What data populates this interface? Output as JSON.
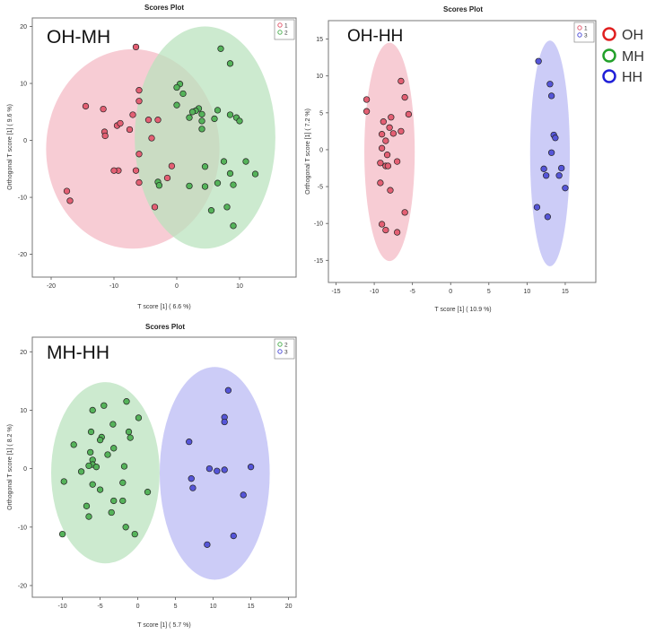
{
  "legend": {
    "items": [
      {
        "label": "OH",
        "color": "#e02020"
      },
      {
        "label": "MH",
        "color": "#22a02a"
      },
      {
        "label": "HH",
        "color": "#2020d8"
      }
    ]
  },
  "chart_data": [
    {
      "type": "scatter",
      "title": "Scores Plot",
      "panel_label": "OH-MH",
      "xlabel": "T score [1] ( 6.6 %)",
      "ylabel": "Orthogonal T score [1] ( 9.6 %)",
      "xlim": [
        -23,
        19
      ],
      "ylim": [
        -24,
        21.5
      ],
      "xticks": [
        "-20",
        "-10",
        "0",
        "10"
      ],
      "xtick_values": [
        -20,
        -10,
        0,
        10
      ],
      "yticks": [
        "-20",
        "-10",
        "0",
        "10",
        "20"
      ],
      "ytick_values": [
        -20,
        -10,
        0,
        10,
        20
      ],
      "grid": false,
      "legend_position": "top-right",
      "series": [
        {
          "name": "1",
          "color": "#e35f73",
          "fill": "#f4b9c3",
          "ellipse": {
            "cx": -7,
            "cy": -1.5,
            "rx": 13.8,
            "ry": 17.5
          },
          "points": [
            [
              -6.5,
              16.4
            ],
            [
              -6,
              8.8
            ],
            [
              -6,
              6.9
            ],
            [
              -14.5,
              6
            ],
            [
              -11.7,
              5.5
            ],
            [
              -7,
              4.5
            ],
            [
              -9.5,
              2.6
            ],
            [
              -9,
              3
            ],
            [
              -11.5,
              1.5
            ],
            [
              -11.4,
              0.8
            ],
            [
              -7.5,
              1.9
            ],
            [
              -4.5,
              3.6
            ],
            [
              -3,
              3.6
            ],
            [
              -4,
              0.4
            ],
            [
              -6,
              -2.4
            ],
            [
              -9.3,
              -5.3
            ],
            [
              -10,
              -5.3
            ],
            [
              -6.5,
              -5.3
            ],
            [
              -0.8,
              -4.5
            ],
            [
              -1.5,
              -6.6
            ],
            [
              -6,
              -7.4
            ],
            [
              -17.5,
              -8.9
            ],
            [
              -17,
              -10.6
            ],
            [
              -3.5,
              -11.7
            ]
          ]
        },
        {
          "name": "2",
          "color": "#55b35a",
          "fill": "#b8e2bc",
          "ellipse": {
            "cx": 4.5,
            "cy": 0.5,
            "rx": 11.2,
            "ry": 19.5
          },
          "points": [
            [
              7,
              16.1
            ],
            [
              8.5,
              13.5
            ],
            [
              0.5,
              9.9
            ],
            [
              0,
              9.3
            ],
            [
              1,
              8.2
            ],
            [
              0,
              6.2
            ],
            [
              3.5,
              5.6
            ],
            [
              6.5,
              5.3
            ],
            [
              3,
              5.2
            ],
            [
              2.5,
              5
            ],
            [
              4,
              4.6
            ],
            [
              8.5,
              4.5
            ],
            [
              9.5,
              4
            ],
            [
              2,
              4
            ],
            [
              6,
              3.8
            ],
            [
              4,
              3.4
            ],
            [
              10,
              3.4
            ],
            [
              4,
              2
            ],
            [
              11,
              -3.7
            ],
            [
              7.5,
              -3.7
            ],
            [
              4.5,
              -4.6
            ],
            [
              8.5,
              -5.8
            ],
            [
              12.5,
              -5.9
            ],
            [
              -3,
              -7.3
            ],
            [
              -2.8,
              -7.9
            ],
            [
              2,
              -8
            ],
            [
              4.5,
              -8.1
            ],
            [
              6.5,
              -7.5
            ],
            [
              9,
              -7.8
            ],
            [
              8,
              -11.7
            ],
            [
              5.5,
              -12.3
            ],
            [
              9,
              -15
            ]
          ]
        }
      ]
    },
    {
      "type": "scatter",
      "title": "Scores Plot",
      "panel_label": "OH-HH",
      "xlabel": "T score [1] ( 10.9 %)",
      "ylabel": "Orthogonal T score [1] ( 7.2 %)",
      "xlim": [
        -16,
        19
      ],
      "ylim": [
        -18,
        17.5
      ],
      "xticks": [
        "-15",
        "-10",
        "-5",
        "0",
        "5",
        "10",
        "15"
      ],
      "xtick_values": [
        -15,
        -10,
        -5,
        0,
        5,
        10,
        15
      ],
      "yticks": [
        "-15",
        "-10",
        "-5",
        "0",
        "5",
        "10",
        "15"
      ],
      "ytick_values": [
        -15,
        -10,
        -5,
        0,
        5,
        10,
        15
      ],
      "grid": false,
      "legend_position": "top-right",
      "series": [
        {
          "name": "1",
          "color": "#e35f73",
          "fill": "#f4b9c3",
          "ellipse": {
            "cx": -8,
            "cy": -0.3,
            "rx": 3.3,
            "ry": 14.8
          },
          "points": [
            [
              -6.5,
              9.3
            ],
            [
              -6,
              7.1
            ],
            [
              -11,
              6.8
            ],
            [
              -11,
              5.2
            ],
            [
              -5.5,
              4.8
            ],
            [
              -7.8,
              4.4
            ],
            [
              -8.8,
              3.8
            ],
            [
              -8,
              3
            ],
            [
              -7.5,
              2.2
            ],
            [
              -9,
              2.1
            ],
            [
              -6.5,
              2.5
            ],
            [
              -8.5,
              1.2
            ],
            [
              -9,
              0.2
            ],
            [
              -8.3,
              -0.7
            ],
            [
              -9.2,
              -1.8
            ],
            [
              -7,
              -1.6
            ],
            [
              -8.5,
              -2.2
            ],
            [
              -8.2,
              -2.2
            ],
            [
              -9.2,
              -4.5
            ],
            [
              -7.9,
              -5.5
            ],
            [
              -6,
              -8.5
            ],
            [
              -9,
              -10.1
            ],
            [
              -8.5,
              -10.9
            ],
            [
              -7,
              -11.2
            ]
          ]
        },
        {
          "name": "3",
          "color": "#5555d8",
          "fill": "#b9b9f4",
          "ellipse": {
            "cx": 13,
            "cy": -0.5,
            "rx": 2.6,
            "ry": 15.3
          },
          "points": [
            [
              11.5,
              12
            ],
            [
              13,
              8.9
            ],
            [
              13.2,
              7.3
            ],
            [
              13.5,
              2
            ],
            [
              13.7,
              1.6
            ],
            [
              13.2,
              -0.4
            ],
            [
              14.5,
              -2.5
            ],
            [
              12.2,
              -2.6
            ],
            [
              14.2,
              -3.5
            ],
            [
              12.5,
              -3.5
            ],
            [
              15,
              -5.2
            ],
            [
              11.3,
              -7.8
            ],
            [
              12.7,
              -9.1
            ]
          ]
        }
      ]
    },
    {
      "type": "scatter",
      "title": "Scores Plot",
      "panel_label": "MH-HH",
      "xlabel": "T score [1] ( 5.7 %)",
      "ylabel": "Orthogonal T score [1] ( 8.2 %)",
      "xlim": [
        -14,
        21
      ],
      "ylim": [
        -22,
        22.5
      ],
      "xticks": [
        "-10",
        "-5",
        "0",
        "5",
        "10",
        "15",
        "20"
      ],
      "xtick_values": [
        -10,
        -5,
        0,
        5,
        10,
        15,
        20
      ],
      "yticks": [
        "-20",
        "-10",
        "0",
        "10",
        "20"
      ],
      "ytick_values": [
        -20,
        -10,
        0,
        10,
        20
      ],
      "grid": false,
      "legend_position": "top-right",
      "series": [
        {
          "name": "2",
          "color": "#55b35a",
          "fill": "#b8e2bc",
          "ellipse": {
            "cx": -4.3,
            "cy": -0.7,
            "rx": 7.2,
            "ry": 15.5
          },
          "points": [
            [
              -1.5,
              11.5
            ],
            [
              -4.5,
              10.8
            ],
            [
              -6,
              10
            ],
            [
              0.1,
              8.7
            ],
            [
              -3.3,
              7.6
            ],
            [
              -6.2,
              6.3
            ],
            [
              -1.2,
              6.3
            ],
            [
              -4.8,
              5.4
            ],
            [
              -5,
              4.9
            ],
            [
              -1,
              5.3
            ],
            [
              -8.5,
              4.1
            ],
            [
              -3.2,
              3.5
            ],
            [
              -6.3,
              2.8
            ],
            [
              -4,
              2.4
            ],
            [
              -6,
              1.5
            ],
            [
              -6,
              0.7
            ],
            [
              -6.5,
              0.5
            ],
            [
              -5.5,
              0.3
            ],
            [
              -1.8,
              0.4
            ],
            [
              -7.5,
              -0.5
            ],
            [
              -9.8,
              -2.2
            ],
            [
              -2,
              -2.4
            ],
            [
              -5,
              -3.6
            ],
            [
              -6,
              -2.7
            ],
            [
              1.3,
              -4
            ],
            [
              -3.2,
              -5.5
            ],
            [
              -2,
              -5.5
            ],
            [
              -6.8,
              -6.4
            ],
            [
              -3.5,
              -7.5
            ],
            [
              -6.5,
              -8.2
            ],
            [
              -1.6,
              -10
            ],
            [
              -0.4,
              -11.2
            ],
            [
              -10,
              -11.2
            ]
          ]
        },
        {
          "name": "3",
          "color": "#5555d8",
          "fill": "#b9b9f4",
          "ellipse": {
            "cx": 10.2,
            "cy": -0.8,
            "rx": 7.3,
            "ry": 18.2
          },
          "points": [
            [
              12,
              13.4
            ],
            [
              11.5,
              8.8
            ],
            [
              11.5,
              8
            ],
            [
              6.8,
              4.6
            ],
            [
              9.5,
              0
            ],
            [
              15,
              0.3
            ],
            [
              10.5,
              -0.4
            ],
            [
              11.5,
              -0.2
            ],
            [
              7.1,
              -1.7
            ],
            [
              14,
              -4.5
            ],
            [
              7.3,
              -3.3
            ],
            [
              12.7,
              -11.5
            ],
            [
              9.2,
              -13
            ]
          ]
        }
      ]
    }
  ]
}
